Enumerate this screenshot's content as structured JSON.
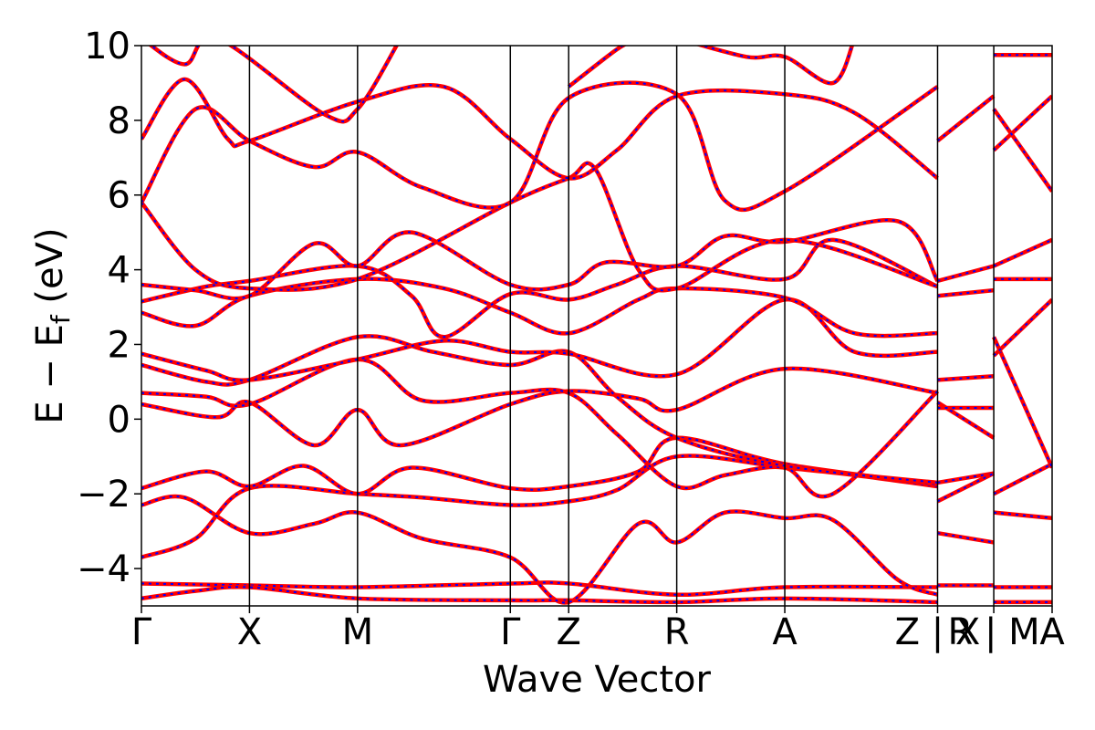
{
  "chart_data": {
    "type": "line",
    "title": "",
    "xlabel": "Wave Vector",
    "ylabel": "E − Ef (eV)",
    "ylabel_main": "E − E",
    "ylabel_sub": "f",
    "ylabel_unit": " (eV)",
    "ylim": [
      -5,
      10
    ],
    "yticks": [
      -4,
      -2,
      0,
      2,
      4,
      6,
      8,
      10
    ],
    "ytick_labels": [
      "−4",
      "−2",
      "0",
      "2",
      "4",
      "6",
      "8",
      "10"
    ],
    "grid": false,
    "legend": "none",
    "kpoints": [
      {
        "label": "Γ",
        "x": 0.0
      },
      {
        "label": "X",
        "x": 0.5
      },
      {
        "label": "M",
        "x": 1.0
      },
      {
        "label": "Γ",
        "x": 1.707
      },
      {
        "label": "Z",
        "x": 1.977
      },
      {
        "label": "R",
        "x": 2.477
      },
      {
        "label": "A",
        "x": 2.977
      },
      {
        "label": "Z | X",
        "x": 3.684
      },
      {
        "label": "R | M",
        "x": 3.944
      },
      {
        "label": "A",
        "x": 4.214
      }
    ],
    "xlim": [
      0.0,
      4.214
    ],
    "colors": {
      "primary": "#ff0000",
      "overlay": "#0000ff"
    },
    "series": [
      {
        "values": [
          {
            "x": 0.0,
            "y": -4.4
          },
          {
            "x": 0.5,
            "y": -4.45
          },
          {
            "x": 1.0,
            "y": -4.5
          },
          {
            "x": 1.707,
            "y": -4.4
          },
          {
            "x": 1.977,
            "y": -4.4
          },
          {
            "x": 2.477,
            "y": -4.7
          },
          {
            "x": 2.977,
            "y": -4.5
          },
          {
            "x": 3.684,
            "y": -4.5
          }
        ]
      },
      {
        "values": [
          {
            "x": 0.0,
            "y": -4.8
          },
          {
            "x": 0.25,
            "y": -4.6
          },
          {
            "x": 0.5,
            "y": -4.5
          },
          {
            "x": 1.0,
            "y": -4.8
          },
          {
            "x": 1.707,
            "y": -4.85
          },
          {
            "x": 1.977,
            "y": -4.85
          },
          {
            "x": 2.477,
            "y": -4.9
          },
          {
            "x": 2.977,
            "y": -4.8
          },
          {
            "x": 3.684,
            "y": -4.9
          }
        ]
      },
      {
        "values": [
          {
            "x": 0.0,
            "y": -3.7
          },
          {
            "x": 0.25,
            "y": -3.2
          },
          {
            "x": 0.5,
            "y": -1.85
          },
          {
            "x": 1.0,
            "y": -2.0
          },
          {
            "x": 1.3,
            "y": -2.1
          },
          {
            "x": 1.707,
            "y": -2.3
          },
          {
            "x": 1.977,
            "y": -2.2
          },
          {
            "x": 2.2,
            "y": -1.9
          },
          {
            "x": 2.477,
            "y": -1.0
          },
          {
            "x": 2.977,
            "y": -1.3
          },
          {
            "x": 3.3,
            "y": -1.5
          },
          {
            "x": 3.684,
            "y": -1.8
          }
        ]
      },
      {
        "values": [
          {
            "x": 0.0,
            "y": -2.3
          },
          {
            "x": 0.2,
            "y": -2.1
          },
          {
            "x": 0.5,
            "y": -3.05
          },
          {
            "x": 0.8,
            "y": -2.8
          },
          {
            "x": 1.0,
            "y": -2.5
          },
          {
            "x": 1.3,
            "y": -3.2
          },
          {
            "x": 1.707,
            "y": -3.7
          },
          {
            "x": 1.977,
            "y": -4.9
          },
          {
            "x": 2.3,
            "y": -2.8
          },
          {
            "x": 2.477,
            "y": -3.3
          },
          {
            "x": 2.7,
            "y": -2.5
          },
          {
            "x": 2.977,
            "y": -2.65
          },
          {
            "x": 3.2,
            "y": -2.7
          },
          {
            "x": 3.5,
            "y": -4.3
          },
          {
            "x": 3.684,
            "y": -4.7
          }
        ]
      },
      {
        "values": [
          {
            "x": 0.0,
            "y": -1.85
          },
          {
            "x": 0.3,
            "y": -1.4
          },
          {
            "x": 0.5,
            "y": -1.8
          },
          {
            "x": 0.75,
            "y": -1.25
          },
          {
            "x": 1.0,
            "y": -2.0
          },
          {
            "x": 1.25,
            "y": -1.3
          },
          {
            "x": 1.707,
            "y": -1.85
          },
          {
            "x": 1.977,
            "y": -1.8
          },
          {
            "x": 2.3,
            "y": -1.4
          },
          {
            "x": 2.477,
            "y": -0.5
          },
          {
            "x": 2.977,
            "y": -1.2
          },
          {
            "x": 3.684,
            "y": -1.75
          }
        ]
      },
      {
        "values": [
          {
            "x": 0.0,
            "y": 0.4
          },
          {
            "x": 0.35,
            "y": 0.05
          },
          {
            "x": 0.5,
            "y": 0.45
          },
          {
            "x": 0.8,
            "y": -0.7
          },
          {
            "x": 1.0,
            "y": 0.25
          },
          {
            "x": 1.2,
            "y": -0.7
          },
          {
            "x": 1.707,
            "y": 0.4
          },
          {
            "x": 1.977,
            "y": 0.75
          },
          {
            "x": 2.3,
            "y": 0.55
          },
          {
            "x": 2.477,
            "y": 0.25
          },
          {
            "x": 2.977,
            "y": 1.35
          },
          {
            "x": 3.684,
            "y": 0.7
          }
        ]
      },
      {
        "values": [
          {
            "x": 0.0,
            "y": 0.7
          },
          {
            "x": 0.3,
            "y": 0.6
          },
          {
            "x": 0.5,
            "y": 0.4
          },
          {
            "x": 1.0,
            "y": 1.6
          },
          {
            "x": 1.3,
            "y": 0.5
          },
          {
            "x": 1.707,
            "y": 0.7
          },
          {
            "x": 1.977,
            "y": 0.7
          },
          {
            "x": 2.2,
            "y": -0.4
          },
          {
            "x": 2.477,
            "y": -1.8
          },
          {
            "x": 2.7,
            "y": -1.5
          },
          {
            "x": 2.977,
            "y": -1.3
          },
          {
            "x": 3.2,
            "y": -2.0
          },
          {
            "x": 3.684,
            "y": 0.75
          }
        ]
      },
      {
        "values": [
          {
            "x": 0.0,
            "y": 1.45
          },
          {
            "x": 0.3,
            "y": 1.0
          },
          {
            "x": 0.5,
            "y": 1.05
          },
          {
            "x": 1.0,
            "y": 2.2
          },
          {
            "x": 1.35,
            "y": 1.8
          },
          {
            "x": 1.707,
            "y": 1.45
          },
          {
            "x": 1.977,
            "y": 1.8
          },
          {
            "x": 2.2,
            "y": 0.6
          },
          {
            "x": 2.477,
            "y": -0.5
          },
          {
            "x": 2.977,
            "y": -1.25
          },
          {
            "x": 3.684,
            "y": -1.7
          }
        ]
      },
      {
        "values": [
          {
            "x": 0.0,
            "y": 1.75
          },
          {
            "x": 0.3,
            "y": 1.3
          },
          {
            "x": 0.5,
            "y": 1.05
          },
          {
            "x": 1.0,
            "y": 1.6
          },
          {
            "x": 1.4,
            "y": 2.1
          },
          {
            "x": 1.707,
            "y": 1.8
          },
          {
            "x": 1.977,
            "y": 1.75
          },
          {
            "x": 2.477,
            "y": 1.2
          },
          {
            "x": 2.977,
            "y": 3.2
          },
          {
            "x": 3.3,
            "y": 1.8
          },
          {
            "x": 3.684,
            "y": 1.8
          }
        ]
      },
      {
        "values": [
          {
            "x": 0.0,
            "y": 2.85
          },
          {
            "x": 0.25,
            "y": 2.5
          },
          {
            "x": 0.5,
            "y": 3.3
          },
          {
            "x": 1.0,
            "y": 3.75
          },
          {
            "x": 1.4,
            "y": 3.5
          },
          {
            "x": 1.707,
            "y": 2.85
          },
          {
            "x": 1.977,
            "y": 2.3
          },
          {
            "x": 2.3,
            "y": 3.2
          },
          {
            "x": 2.477,
            "y": 3.5
          },
          {
            "x": 2.977,
            "y": 3.25
          },
          {
            "x": 3.3,
            "y": 2.3
          },
          {
            "x": 3.684,
            "y": 2.3
          }
        ]
      },
      {
        "values": [
          {
            "x": 0.0,
            "y": 3.15
          },
          {
            "x": 0.3,
            "y": 3.55
          },
          {
            "x": 0.5,
            "y": 3.7
          },
          {
            "x": 1.0,
            "y": 4.1
          },
          {
            "x": 1.25,
            "y": 3.3
          },
          {
            "x": 1.4,
            "y": 2.2
          },
          {
            "x": 1.707,
            "y": 3.35
          },
          {
            "x": 1.977,
            "y": 3.2
          },
          {
            "x": 2.2,
            "y": 3.6
          },
          {
            "x": 2.477,
            "y": 4.1
          },
          {
            "x": 2.977,
            "y": 3.75
          },
          {
            "x": 3.2,
            "y": 4.8
          },
          {
            "x": 3.684,
            "y": 3.55
          }
        ]
      },
      {
        "values": [
          {
            "x": 0.0,
            "y": 3.6
          },
          {
            "x": 0.25,
            "y": 3.45
          },
          {
            "x": 0.5,
            "y": 3.3
          },
          {
            "x": 0.8,
            "y": 4.7
          },
          {
            "x": 1.0,
            "y": 4.1
          },
          {
            "x": 1.25,
            "y": 5.0
          },
          {
            "x": 1.707,
            "y": 3.6
          },
          {
            "x": 1.977,
            "y": 3.6
          },
          {
            "x": 2.15,
            "y": 4.2
          },
          {
            "x": 2.477,
            "y": 4.1
          },
          {
            "x": 2.7,
            "y": 4.9
          },
          {
            "x": 2.977,
            "y": 4.75
          },
          {
            "x": 3.5,
            "y": 5.3
          },
          {
            "x": 3.684,
            "y": 3.7
          }
        ]
      },
      {
        "values": [
          {
            "x": 0.0,
            "y": 5.8
          },
          {
            "x": 0.25,
            "y": 4.0
          },
          {
            "x": 0.5,
            "y": 3.5
          },
          {
            "x": 1.0,
            "y": 3.75
          },
          {
            "x": 1.707,
            "y": 5.8
          },
          {
            "x": 1.977,
            "y": 6.45
          },
          {
            "x": 2.1,
            "y": 6.7
          },
          {
            "x": 2.3,
            "y": 4.0
          },
          {
            "x": 2.477,
            "y": 3.5
          },
          {
            "x": 2.977,
            "y": 4.8
          },
          {
            "x": 3.684,
            "y": 3.55
          }
        ]
      },
      {
        "values": [
          {
            "x": 0.0,
            "y": 5.8
          },
          {
            "x": 0.25,
            "y": 8.3
          },
          {
            "x": 0.5,
            "y": 7.45
          },
          {
            "x": 0.8,
            "y": 6.75
          },
          {
            "x": 1.0,
            "y": 7.15
          },
          {
            "x": 1.3,
            "y": 6.2
          },
          {
            "x": 1.707,
            "y": 5.8
          },
          {
            "x": 1.977,
            "y": 8.6
          },
          {
            "x": 2.477,
            "y": 8.7
          },
          {
            "x": 2.7,
            "y": 5.85
          },
          {
            "x": 2.977,
            "y": 6.1
          },
          {
            "x": 3.684,
            "y": 8.9
          }
        ]
      },
      {
        "values": [
          {
            "x": 0.0,
            "y": 7.5
          },
          {
            "x": 0.2,
            "y": 9.1
          },
          {
            "x": 0.4,
            "y": 7.5
          },
          {
            "x": 0.5,
            "y": 7.45
          },
          {
            "x": 1.0,
            "y": 8.5
          },
          {
            "x": 1.4,
            "y": 8.9
          },
          {
            "x": 1.707,
            "y": 7.5
          },
          {
            "x": 1.977,
            "y": 6.45
          },
          {
            "x": 2.2,
            "y": 7.2
          },
          {
            "x": 2.477,
            "y": 8.65
          },
          {
            "x": 2.977,
            "y": 8.7
          },
          {
            "x": 3.3,
            "y": 8.2
          },
          {
            "x": 3.684,
            "y": 6.45
          }
        ]
      },
      {
        "values": [
          {
            "x": 0.0,
            "y": 10.2
          },
          {
            "x": 0.2,
            "y": 9.5
          },
          {
            "x": 0.35,
            "y": 10.2
          },
          {
            "x": 0.85,
            "y": 8.15
          },
          {
            "x": 1.0,
            "y": 8.3
          },
          {
            "x": 1.2,
            "y": 10.2
          }
        ]
      },
      {
        "values": [
          {
            "x": 1.977,
            "y": 8.9
          },
          {
            "x": 2.2,
            "y": 9.9
          },
          {
            "x": 2.3,
            "y": 10.2
          }
        ]
      },
      {
        "values": [
          {
            "x": 2.477,
            "y": 10.2
          },
          {
            "x": 2.8,
            "y": 9.7
          },
          {
            "x": 2.977,
            "y": 9.7
          },
          {
            "x": 3.2,
            "y": 9.0
          },
          {
            "x": 3.3,
            "y": 10.2
          }
        ]
      },
      {
        "values": [
          {
            "x": 3.684,
            "y": -4.45
          },
          {
            "x": 3.944,
            "y": -4.45
          }
        ]
      },
      {
        "values": [
          {
            "x": 3.684,
            "y": -3.05
          },
          {
            "x": 3.944,
            "y": -3.3
          }
        ]
      },
      {
        "values": [
          {
            "x": 3.684,
            "y": -1.7
          },
          {
            "x": 3.944,
            "y": -1.45
          }
        ]
      },
      {
        "values": [
          {
            "x": 3.684,
            "y": -2.2
          },
          {
            "x": 3.944,
            "y": -1.45
          }
        ]
      },
      {
        "values": [
          {
            "x": 3.684,
            "y": 0.45
          },
          {
            "x": 3.944,
            "y": -0.5
          }
        ]
      },
      {
        "values": [
          {
            "x": 3.684,
            "y": 0.3
          },
          {
            "x": 3.944,
            "y": 0.3
          }
        ]
      },
      {
        "values": [
          {
            "x": 3.684,
            "y": 1.05
          },
          {
            "x": 3.944,
            "y": 1.15
          }
        ]
      },
      {
        "values": [
          {
            "x": 3.684,
            "y": 3.3
          },
          {
            "x": 3.944,
            "y": 3.45
          }
        ]
      },
      {
        "values": [
          {
            "x": 3.684,
            "y": 3.7
          },
          {
            "x": 3.944,
            "y": 4.1
          }
        ]
      },
      {
        "values": [
          {
            "x": 3.684,
            "y": 7.45
          },
          {
            "x": 3.944,
            "y": 8.65
          }
        ]
      },
      {
        "values": [
          {
            "x": 3.944,
            "y": -4.5
          },
          {
            "x": 4.214,
            "y": -4.5
          }
        ]
      },
      {
        "values": [
          {
            "x": 3.944,
            "y": -4.9
          },
          {
            "x": 4.214,
            "y": -4.9
          }
        ]
      },
      {
        "values": [
          {
            "x": 3.944,
            "y": -2.5
          },
          {
            "x": 4.214,
            "y": -2.65
          }
        ]
      },
      {
        "values": [
          {
            "x": 3.944,
            "y": -2.0
          },
          {
            "x": 4.214,
            "y": -1.2
          }
        ]
      },
      {
        "values": [
          {
            "x": 3.944,
            "y": 2.2
          },
          {
            "x": 4.214,
            "y": -1.3
          }
        ]
      },
      {
        "values": [
          {
            "x": 3.944,
            "y": 1.7
          },
          {
            "x": 4.214,
            "y": 3.2
          }
        ]
      },
      {
        "values": [
          {
            "x": 3.944,
            "y": 3.75
          },
          {
            "x": 4.214,
            "y": 3.75
          }
        ]
      },
      {
        "values": [
          {
            "x": 3.944,
            "y": 4.1
          },
          {
            "x": 4.214,
            "y": 4.8
          }
        ]
      },
      {
        "values": [
          {
            "x": 3.944,
            "y": 7.2
          },
          {
            "x": 4.214,
            "y": 8.65
          }
        ]
      },
      {
        "values": [
          {
            "x": 3.944,
            "y": 8.3
          },
          {
            "x": 4.214,
            "y": 6.1
          }
        ]
      },
      {
        "values": [
          {
            "x": 3.944,
            "y": 9.75
          },
          {
            "x": 4.214,
            "y": 9.75
          }
        ]
      }
    ]
  }
}
